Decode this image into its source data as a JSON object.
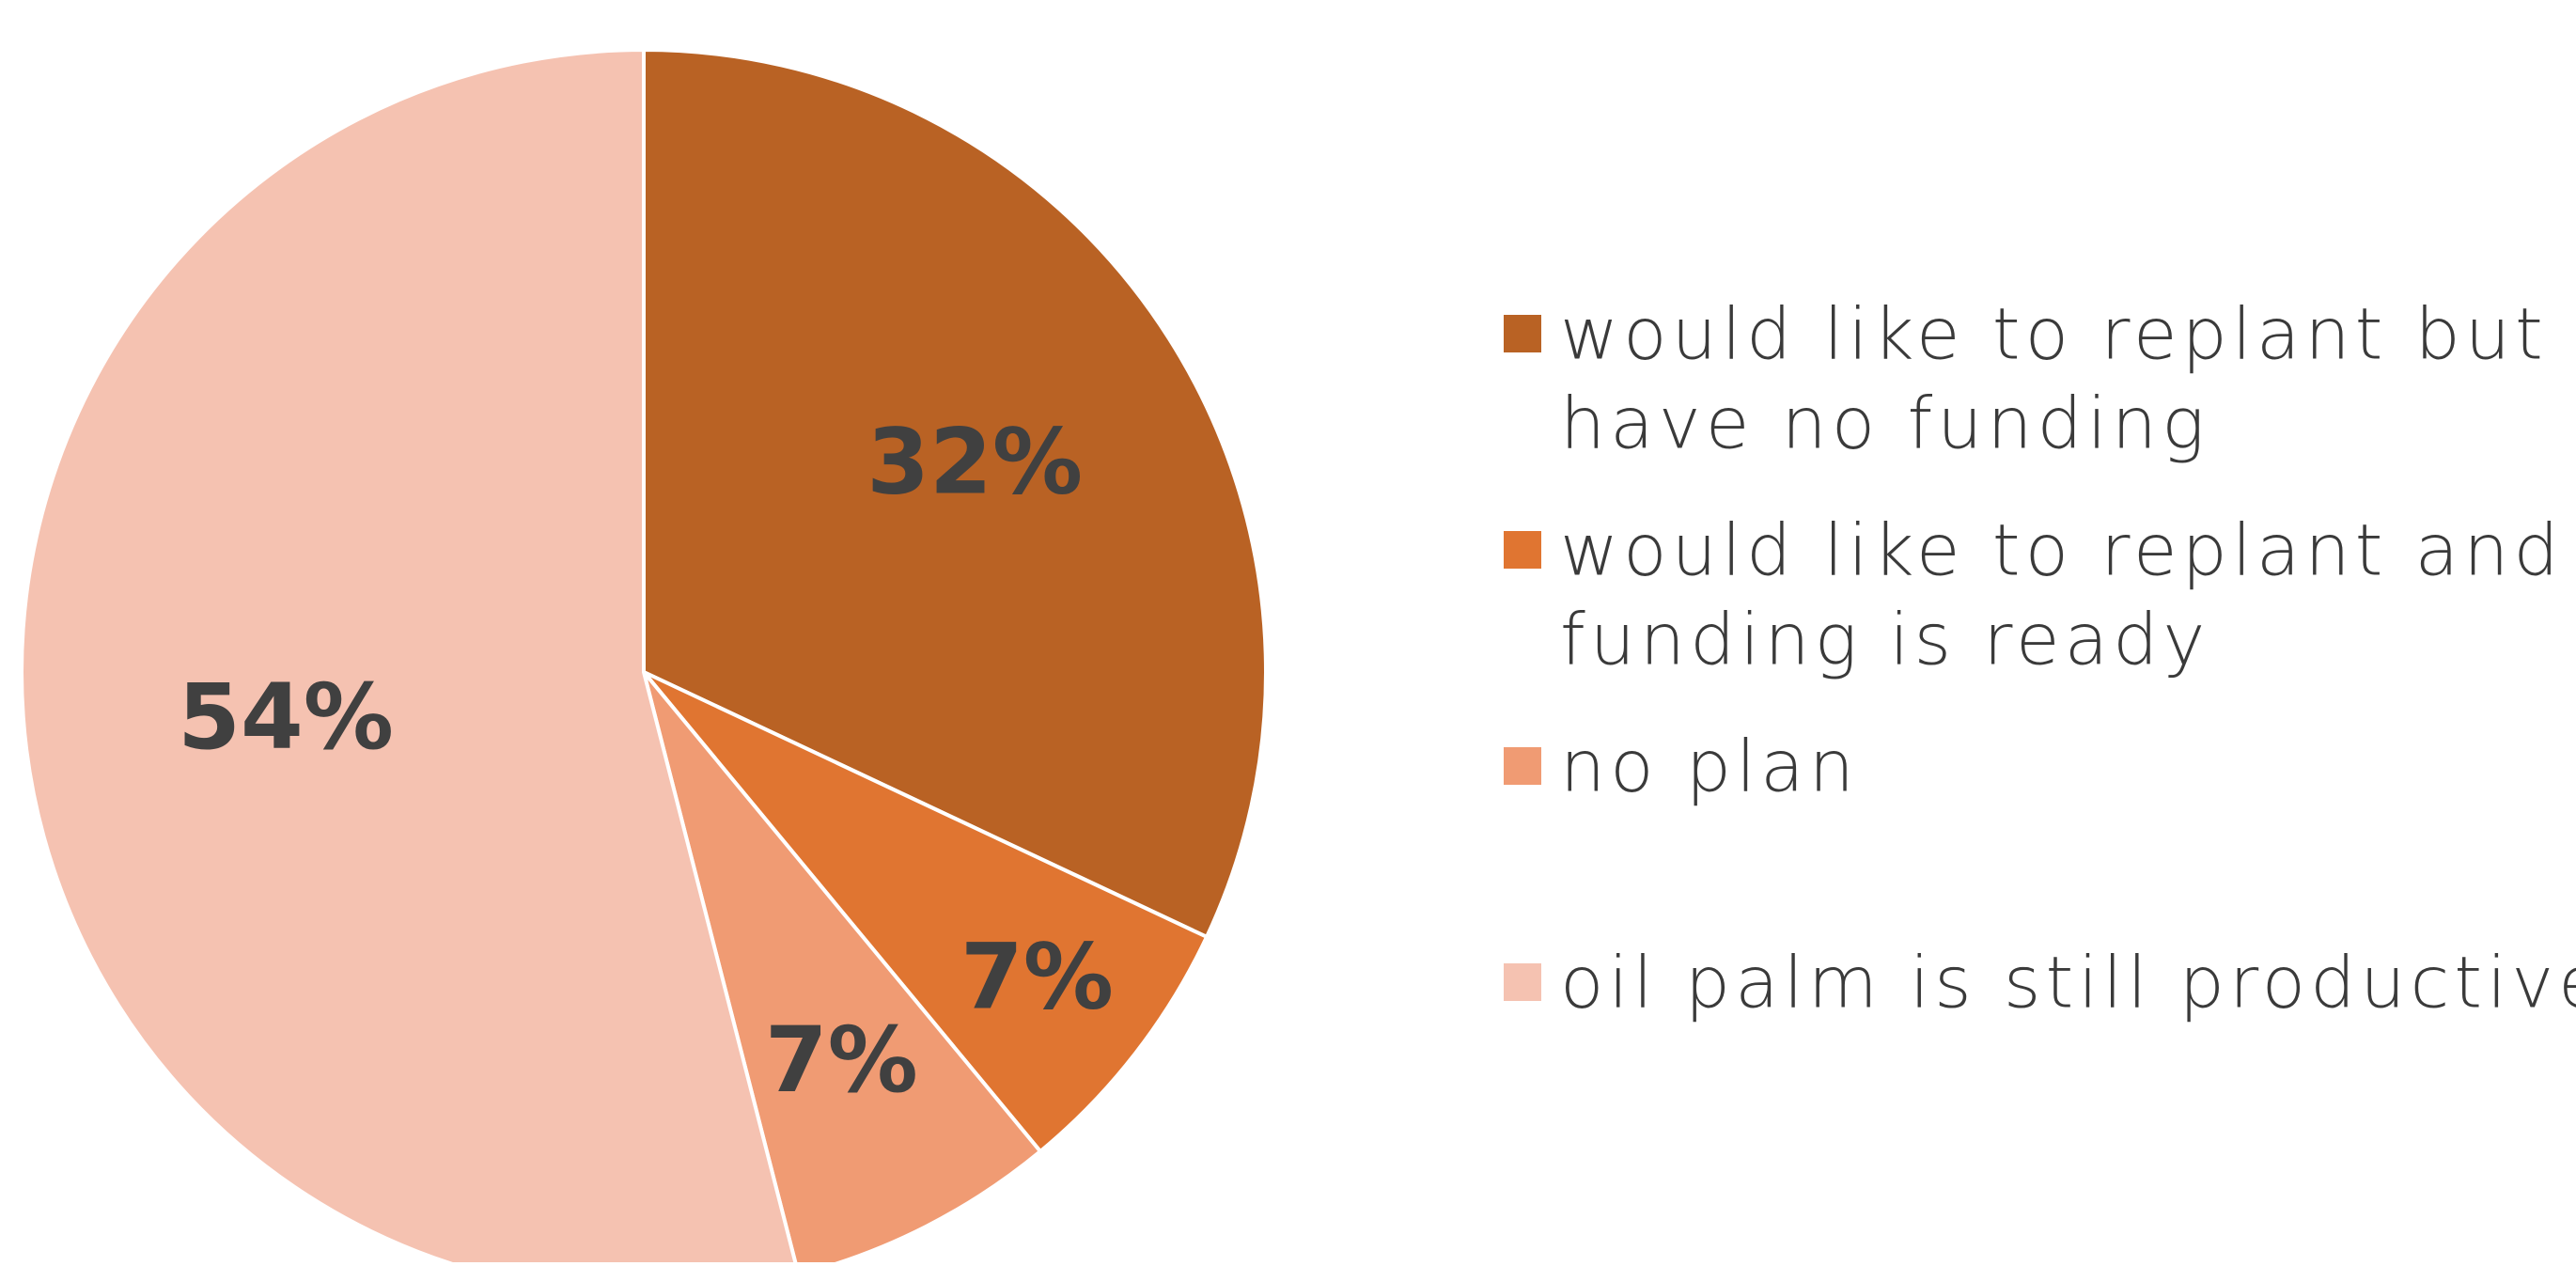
{
  "chart_data": {
    "type": "pie",
    "title": "",
    "slices": [
      {
        "label_lines": [
          "would like to replant but",
          "have no funding"
        ],
        "value": 32,
        "value_label": "32%",
        "color": "#B96224"
      },
      {
        "label_lines": [
          "would like to replant and",
          "funding is ready"
        ],
        "value": 7,
        "value_label": "7%",
        "color": "#E07531"
      },
      {
        "label_lines": [
          "no plan"
        ],
        "value": 7,
        "value_label": "7%",
        "color": "#F09B73"
      },
      {
        "label_lines": [
          "oil palm is still productive"
        ],
        "value": 54,
        "value_label": "54%",
        "color": "#F5C2B1"
      }
    ],
    "legend_position": "right"
  }
}
